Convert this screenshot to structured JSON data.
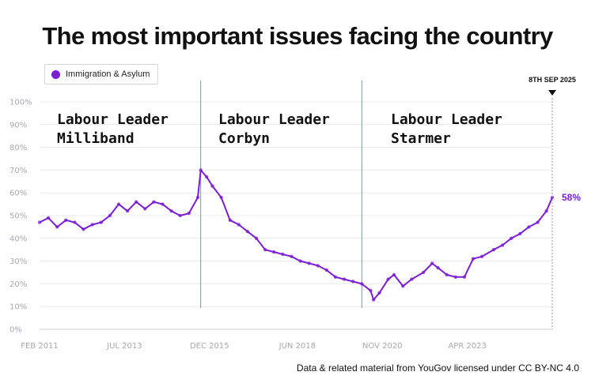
{
  "title": "The most important issues facing the country",
  "credit": "Data & related material from YouGov licensed under CC BY-NC 4.0",
  "colors": {
    "series": "#7a1fd1",
    "divider": "#7f93a8",
    "grid": "#e9e9ee"
  },
  "chart_data": {
    "type": "line",
    "title": "The most important issues facing the country",
    "series": [
      {
        "name": "Immigration & Asylum",
        "color": "#7a1fd1",
        "points": [
          [
            "2011-02",
            47
          ],
          [
            "2011-05",
            49
          ],
          [
            "2011-08",
            45
          ],
          [
            "2011-11",
            48
          ],
          [
            "2012-02",
            47
          ],
          [
            "2012-05",
            44
          ],
          [
            "2012-08",
            46
          ],
          [
            "2012-11",
            47
          ],
          [
            "2013-02",
            50
          ],
          [
            "2013-05",
            55
          ],
          [
            "2013-08",
            52
          ],
          [
            "2013-11",
            56
          ],
          [
            "2014-02",
            53
          ],
          [
            "2014-05",
            56
          ],
          [
            "2014-08",
            55
          ],
          [
            "2014-11",
            52
          ],
          [
            "2015-02",
            50
          ],
          [
            "2015-05",
            51
          ],
          [
            "2015-08",
            58
          ],
          [
            "2015-09",
            70
          ],
          [
            "2015-11",
            67
          ],
          [
            "2016-01",
            63
          ],
          [
            "2016-04",
            58
          ],
          [
            "2016-07",
            48
          ],
          [
            "2016-10",
            46
          ],
          [
            "2017-01",
            43
          ],
          [
            "2017-04",
            40
          ],
          [
            "2017-07",
            35
          ],
          [
            "2017-10",
            34
          ],
          [
            "2018-01",
            33
          ],
          [
            "2018-04",
            32
          ],
          [
            "2018-07",
            30
          ],
          [
            "2018-10",
            29
          ],
          [
            "2019-01",
            28
          ],
          [
            "2019-04",
            26
          ],
          [
            "2019-07",
            23
          ],
          [
            "2019-10",
            22
          ],
          [
            "2020-01",
            21
          ],
          [
            "2020-04",
            20
          ],
          [
            "2020-07",
            17
          ],
          [
            "2020-08",
            13
          ],
          [
            "2020-10",
            16
          ],
          [
            "2021-01",
            22
          ],
          [
            "2021-03",
            24
          ],
          [
            "2021-06",
            19
          ],
          [
            "2021-09",
            22
          ],
          [
            "2022-01",
            25
          ],
          [
            "2022-04",
            29
          ],
          [
            "2022-06",
            27
          ],
          [
            "2022-09",
            24
          ],
          [
            "2022-12",
            23
          ],
          [
            "2023-03",
            23
          ],
          [
            "2023-06",
            31
          ],
          [
            "2023-09",
            32
          ],
          [
            "2024-01",
            35
          ],
          [
            "2024-04",
            37
          ],
          [
            "2024-07",
            40
          ],
          [
            "2024-10",
            42
          ],
          [
            "2025-01",
            45
          ],
          [
            "2025-04",
            47
          ],
          [
            "2025-07",
            52
          ],
          [
            "2025-09",
            58
          ]
        ]
      }
    ],
    "x_ticks": [
      "FEB 2011",
      "JUL 2013",
      "DEC 2015",
      "JUN 2018",
      "NOV 2020",
      "APR 2023"
    ],
    "x_tick_dates": [
      "2011-02",
      "2013-07",
      "2015-12",
      "2018-06",
      "2020-11",
      "2023-04"
    ],
    "xlim": [
      "2011-02",
      "2025-09"
    ],
    "y_ticks": [
      "0%",
      "10%",
      "20%",
      "30%",
      "40%",
      "50%",
      "60%",
      "70%",
      "80%",
      "90%",
      "100%"
    ],
    "ylim": [
      0,
      100
    ],
    "legend": {
      "position": "top-left",
      "label": "Immigration & Asylum"
    },
    "periods": [
      {
        "line1": "Labour Leader",
        "line2": "Milliband"
      },
      {
        "line1": "Labour Leader",
        "line2": "Corbyn",
        "start": "2015-09"
      },
      {
        "line1": "Labour Leader",
        "line2": "Starmer",
        "start": "2020-04"
      }
    ],
    "end_marker": {
      "label": "8TH SEP 2025",
      "date": "2025-09"
    },
    "end_value_label": "58%",
    "grid": true
  }
}
